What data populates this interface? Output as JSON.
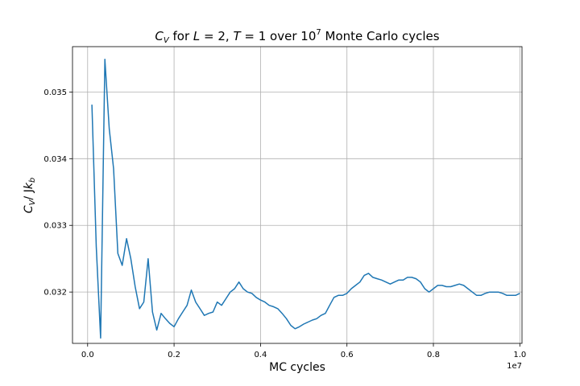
{
  "chart_data": {
    "type": "line",
    "title_parts": {
      "cv": "C",
      "cv_sub": "V",
      "for": " for ",
      "L": "L",
      "eq1": " = 2, ",
      "T": "T",
      "eq2": " = 1 over 10",
      "exp": "7",
      "rest": " Monte Carlo cycles"
    },
    "xlabel": "MC cycles",
    "ylabel_parts": {
      "c": "C",
      "sub": "V",
      "slash": "/ J",
      "k": "k",
      "ksub": "b"
    },
    "x_offset_label": "1e7",
    "x_scale": 10000000,
    "xlim": [
      -0.035,
      1.005
    ],
    "ylim": [
      0.03123,
      0.03568
    ],
    "xticks": [
      0.0,
      0.2,
      0.4,
      0.6,
      0.8,
      1.0
    ],
    "xtick_labels": [
      "0.0",
      "0.2",
      "0.4",
      "0.6",
      "0.8",
      "1.0"
    ],
    "yticks": [
      0.032,
      0.033,
      0.034,
      0.035
    ],
    "ytick_labels": [
      "0.032",
      "0.033",
      "0.034",
      "0.035"
    ],
    "grid": true,
    "series": [
      {
        "color": "#1f77b4",
        "x": [
          0.01,
          0.02,
          0.03,
          0.04,
          0.05,
          0.06,
          0.07,
          0.08,
          0.09,
          0.1,
          0.11,
          0.12,
          0.13,
          0.14,
          0.15,
          0.16,
          0.17,
          0.18,
          0.19,
          0.2,
          0.21,
          0.22,
          0.23,
          0.24,
          0.25,
          0.26,
          0.27,
          0.28,
          0.29,
          0.3,
          0.31,
          0.32,
          0.33,
          0.34,
          0.35,
          0.36,
          0.37,
          0.38,
          0.39,
          0.4,
          0.41,
          0.42,
          0.43,
          0.44,
          0.45,
          0.46,
          0.47,
          0.48,
          0.49,
          0.5,
          0.51,
          0.52,
          0.53,
          0.54,
          0.55,
          0.56,
          0.57,
          0.58,
          0.59,
          0.6,
          0.61,
          0.62,
          0.63,
          0.64,
          0.65,
          0.66,
          0.67,
          0.68,
          0.69,
          0.7,
          0.71,
          0.72,
          0.73,
          0.74,
          0.75,
          0.76,
          0.77,
          0.78,
          0.79,
          0.8,
          0.81,
          0.82,
          0.83,
          0.84,
          0.85,
          0.86,
          0.87,
          0.88,
          0.89,
          0.9,
          0.91,
          0.92,
          0.93,
          0.94,
          0.95,
          0.96,
          0.97,
          0.98,
          0.99,
          1.0
        ],
        "y": [
          0.03481,
          0.03268,
          0.03131,
          0.03549,
          0.03445,
          0.03385,
          0.03258,
          0.0324,
          0.0328,
          0.0325,
          0.03208,
          0.03175,
          0.03185,
          0.0325,
          0.0317,
          0.03143,
          0.03168,
          0.0316,
          0.03153,
          0.03148,
          0.0316,
          0.0317,
          0.0318,
          0.03203,
          0.03185,
          0.03175,
          0.03165,
          0.03168,
          0.0317,
          0.03185,
          0.0318,
          0.0319,
          0.032,
          0.03205,
          0.03215,
          0.03205,
          0.032,
          0.03198,
          0.03192,
          0.03188,
          0.03185,
          0.0318,
          0.03178,
          0.03175,
          0.03168,
          0.0316,
          0.0315,
          0.03145,
          0.03148,
          0.03152,
          0.03155,
          0.03158,
          0.0316,
          0.03165,
          0.03168,
          0.0318,
          0.03192,
          0.03195,
          0.03195,
          0.03198,
          0.03205,
          0.0321,
          0.03215,
          0.03225,
          0.03228,
          0.03222,
          0.0322,
          0.03218,
          0.03215,
          0.03212,
          0.03215,
          0.03218,
          0.03218,
          0.03222,
          0.03222,
          0.0322,
          0.03215,
          0.03205,
          0.032,
          0.03205,
          0.0321,
          0.0321,
          0.03208,
          0.03208,
          0.0321,
          0.03212,
          0.0321,
          0.03205,
          0.032,
          0.03195,
          0.03195,
          0.03198,
          0.032,
          0.032,
          0.032,
          0.03198,
          0.03195,
          0.03195,
          0.03195,
          0.03198
        ]
      }
    ]
  }
}
